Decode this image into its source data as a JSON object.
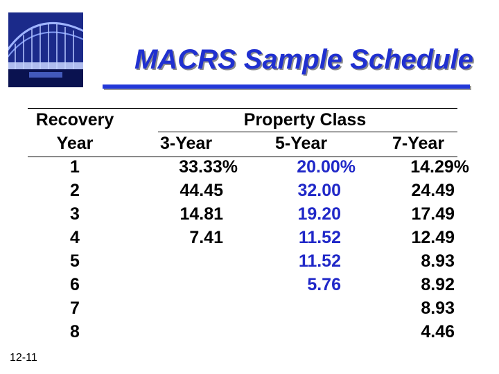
{
  "title": "MACRS Sample Schedule",
  "slide_number": "12-11",
  "headers": {
    "recovery_line1": "Recovery",
    "recovery_line2": "Year",
    "property_class": "Property Class",
    "col_3yr": "3-Year",
    "col_5yr": "5-Year",
    "col_7yr": "7-Year"
  },
  "rows": [
    {
      "year": "1",
      "y3": "33.33%",
      "y5": "20.00%",
      "y7": "14.29%"
    },
    {
      "year": "2",
      "y3": "44.45",
      "y5": "32.00",
      "y7": "24.49"
    },
    {
      "year": "3",
      "y3": "14.81",
      "y5": "19.20",
      "y7": "17.49"
    },
    {
      "year": "4",
      "y3": "7.41",
      "y5": "11.52",
      "y7": "12.49"
    },
    {
      "year": "5",
      "y3": "",
      "y5": "11.52",
      "y7": "8.93"
    },
    {
      "year": "6",
      "y3": "",
      "y5": "5.76",
      "y7": "8.92"
    },
    {
      "year": "7",
      "y3": "",
      "y5": "",
      "y7": "8.93"
    },
    {
      "year": "8",
      "y3": "",
      "y5": "",
      "y7": "4.46"
    }
  ],
  "colors": {
    "title": "#2030d0",
    "five_year_column": "#2028c8"
  },
  "logo_icon": "bridge-photo-icon"
}
